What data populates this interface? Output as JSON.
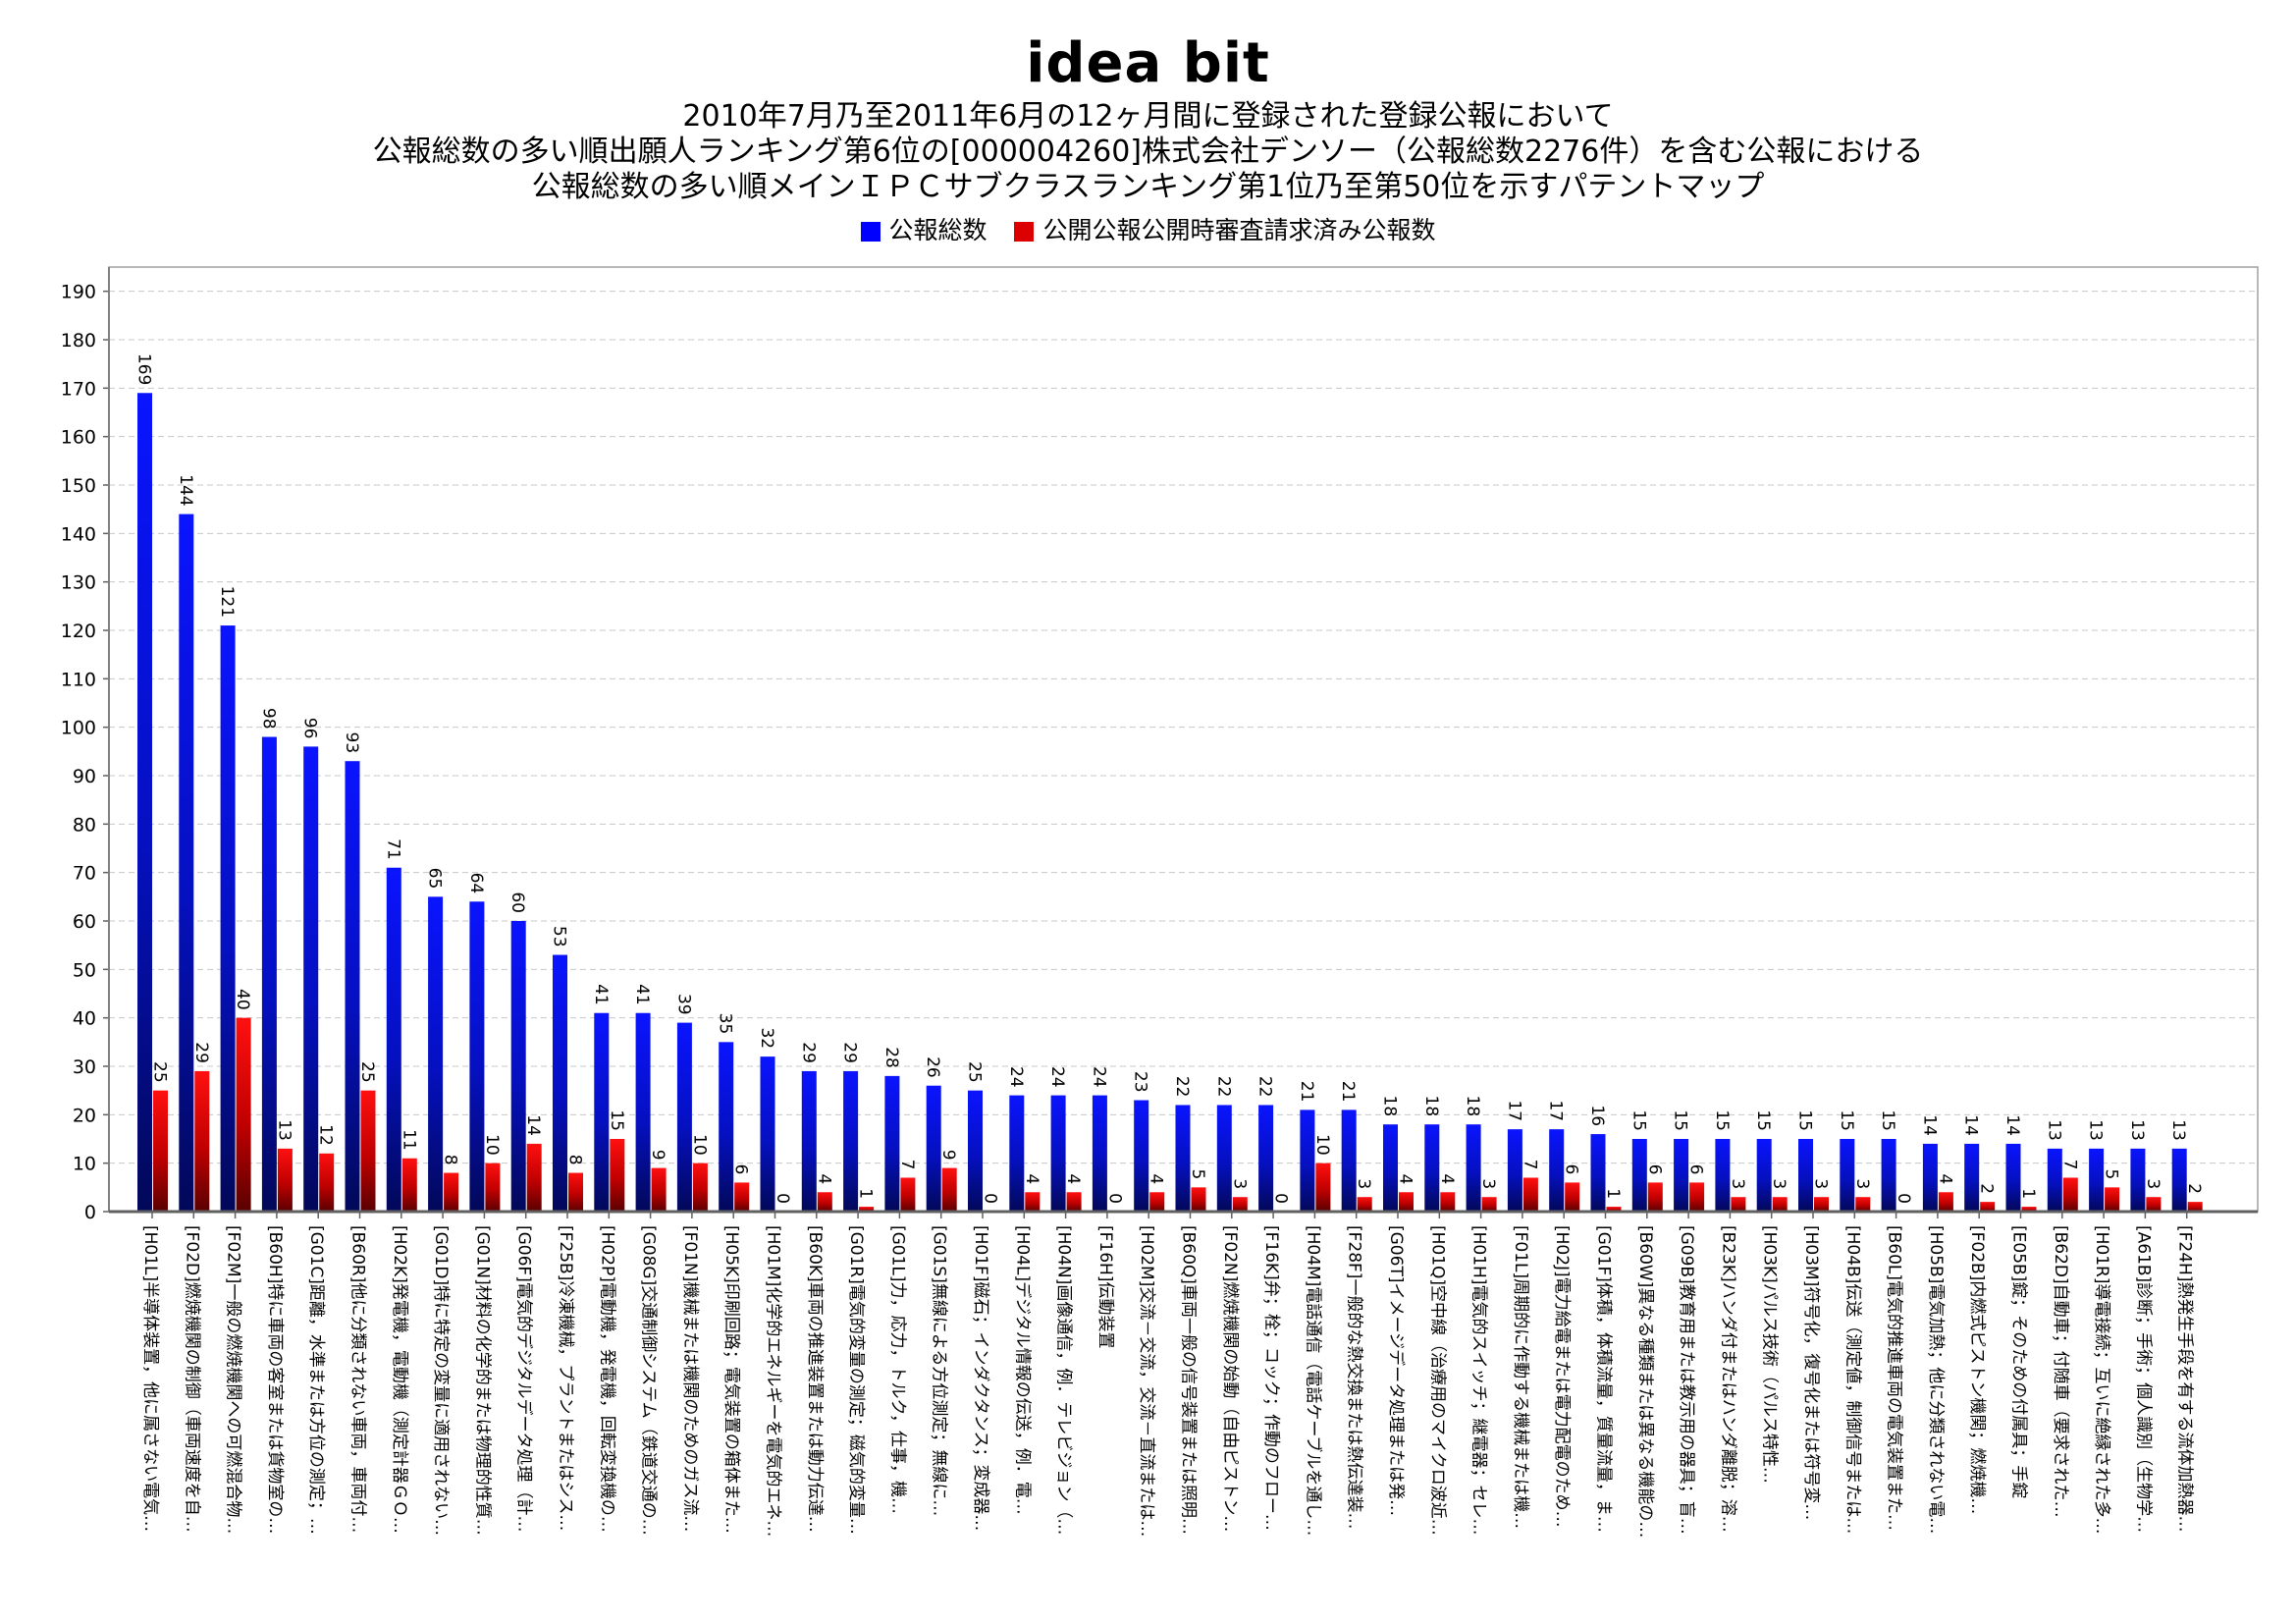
{
  "logo": "idea bit",
  "title_lines": [
    "2010年7月乃至2011年6月の12ヶ月間に登録された登録公報において",
    "公報総数の多い順出願人ランキング第6位の[000004260]株式会社デンソー（公報総数2276件）を含む公報における",
    "公報総数の多い順メインＩＰＣサブクラスランキング第1位乃至第50位を示すパテントマップ"
  ],
  "colors": {
    "series1": "#0000ff",
    "series2": "#dd0000"
  },
  "chart_data": {
    "type": "bar",
    "ylim": [
      0,
      195
    ],
    "yticks": [
      0,
      10,
      20,
      30,
      40,
      50,
      60,
      70,
      80,
      90,
      100,
      110,
      120,
      130,
      140,
      150,
      160,
      170,
      180,
      190
    ],
    "grid": true,
    "legend_position": "top",
    "categories": [
      "[H01L]半導体装置，他に属さない電気…",
      "[F02D]燃焼機関の制御（車両速度を自…",
      "[F02M]一般の燃焼機関への可燃混合物…",
      "[B60H]特に車両の客室または貨物室の…",
      "[G01C]距離，水準または方位の測定；…",
      "[B60R]他に分類されない車両，車両付…",
      "[H02K]発電機，電動機（測定計器ＧＯ…",
      "[G01D]特に特定の変量に適用されない…",
      "[G01N]材料の化学的または物理的性質…",
      "[G06F]電気的デジタルデータ処理（計…",
      "[F25B]冷凍機械，プラントまたはシス…",
      "[H02P]電動機，発電機，回転変換機の…",
      "[G08G]交通制御システム（鉄道交通の…",
      "[F01N]機械または機関のためのガス流…",
      "[H05K]印刷回路；電気装置の箱体また…",
      "[H01M]化学的エネルギーを電気的エネ…",
      "[B60K]車両の推進装置または動力伝達…",
      "[G01R]電気的変量の測定；磁気的変量…",
      "[G01L]力，応力，トルク，仕事，機…",
      "[G01S]無線による方位測定；無線に…",
      "[H01F]磁石；インダクタンス；変成器…",
      "[H04L]デジタル情報の伝送，例．電…",
      "[H04N]画像通信，例．テレビジョン（…",
      "[F16H]伝動装置",
      "[H02M]交流－交流，交流－直流または…",
      "[B60Q]車両一般の信号装置または照明…",
      "[F02N]燃焼機関の始動（自由ピストン…",
      "[F16K]弁；栓；コック；作動のフロー…",
      "[H04M]電話通信（電話ケーブルを通し…",
      "[F28F]一般的な熱交換または熱伝達装…",
      "[G06T]イメージデータ処理または発…",
      "[H01Q]空中線（治療用のマイクロ波近…",
      "[H01H]電気的スイッチ；継電器；セレ…",
      "[F01L]周期的に作動する機械または機…",
      "[H02J]電力給電または電力配電のため…",
      "[G01F]体積，体積流量，質量流量，ま…",
      "[B60W]異なる種類または異なる機能の…",
      "[G09B]教育用または教示用の器具；盲…",
      "[B23K]ハンダ付またはハンダ離脱；溶…",
      "[H03K]パルス技術（パルス特性…",
      "[H03M]符号化，復号化または符号変…",
      "[H04B]伝送（測定値，制御信号または…",
      "[B60L]電気的推進車両の電気装置また…",
      "[H05B]電気加熱；他に分類されない電…",
      "[F02B]内燃式ピストン機関；燃焼機…",
      "[E05B]錠；そのための付属具；手錠",
      "[B62D]自動車；付随車（要求された…",
      "[H01R]導電接続；互いに絶縁された多…",
      "[A61B]診断；手術；個人識別（生物学…",
      "[F24H]熱発生手段を有する流体加熱器…"
    ],
    "series": [
      {
        "name": "公報総数",
        "values": [
          169,
          144,
          121,
          98,
          96,
          93,
          71,
          65,
          64,
          60,
          53,
          41,
          41,
          39,
          35,
          32,
          29,
          29,
          28,
          26,
          25,
          24,
          24,
          24,
          23,
          22,
          22,
          22,
          21,
          21,
          18,
          18,
          18,
          17,
          17,
          16,
          15,
          15,
          15,
          15,
          15,
          15,
          15,
          14,
          14,
          14,
          13,
          13,
          13,
          13
        ]
      },
      {
        "name": "公開公報公開時審査請求済み公報数",
        "values": [
          25,
          29,
          40,
          13,
          12,
          25,
          11,
          8,
          10,
          14,
          8,
          15,
          9,
          10,
          6,
          0,
          4,
          1,
          7,
          9,
          0,
          4,
          4,
          0,
          4,
          5,
          3,
          0,
          10,
          3,
          4,
          4,
          3,
          7,
          6,
          1,
          6,
          6,
          3,
          3,
          3,
          3,
          0,
          4,
          2,
          1,
          7,
          5,
          3,
          2
        ]
      }
    ]
  }
}
